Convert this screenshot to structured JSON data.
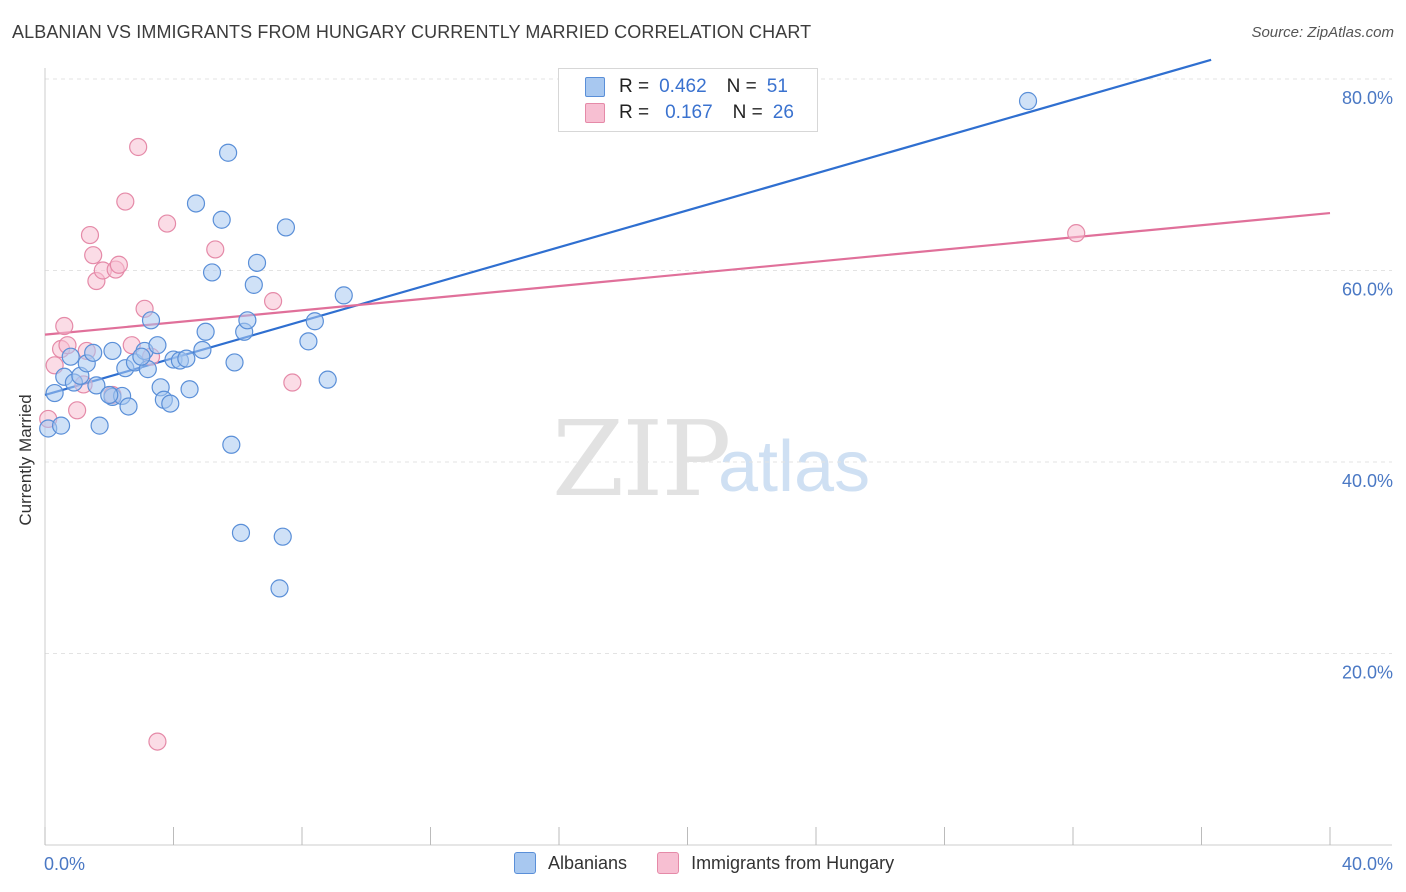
{
  "title": "ALBANIAN VS IMMIGRANTS FROM HUNGARY CURRENTLY MARRIED CORRELATION CHART",
  "source": "Source: ZipAtlas.com",
  "watermark": {
    "zip": "ZIP",
    "atlas": "atlas"
  },
  "legend_top": {
    "albanians": {
      "r_label": "R =",
      "r_value": "0.462",
      "n_label": "N =",
      "n_value": "51"
    },
    "hungary": {
      "r_label": "R =",
      "r_value": "0.167",
      "n_label": "N =",
      "n_value": "26"
    }
  },
  "bottom_legend": {
    "albanians": "Albanians",
    "hungary": "Immigrants from Hungary"
  },
  "colors": {
    "albanian_fill": "#a8c8f0",
    "albanian_stroke": "#5a8fd8",
    "albanian_line": "#2f6fd0",
    "hungary_fill": "#f7bfd2",
    "hungary_stroke": "#e58aa8",
    "hungary_line": "#e0709a",
    "tick": "#4a78c4",
    "grid": "#e3e3e3"
  },
  "chart_data": {
    "type": "scatter",
    "title": "ALBANIAN VS IMMIGRANTS FROM HUNGARY CURRENTLY MARRIED CORRELATION CHART",
    "xlabel": "",
    "ylabel": "Currently Married",
    "xlim": [
      0,
      40
    ],
    "ylim": [
      0,
      80
    ],
    "x_tick_labels": [
      "0.0%",
      "40.0%"
    ],
    "y_ticks": [
      20,
      40,
      60,
      80
    ],
    "y_tick_labels": [
      "20.0%",
      "40.0%",
      "60.0%",
      "80.0%"
    ],
    "series": [
      {
        "name": "Albanians",
        "trend": {
          "x": [
            0,
            36.3
          ],
          "y": [
            47.0,
            82.0
          ]
        },
        "points": [
          [
            0.1,
            43.5
          ],
          [
            0.3,
            47.2
          ],
          [
            0.5,
            43.8
          ],
          [
            0.6,
            48.9
          ],
          [
            0.8,
            51.0
          ],
          [
            0.9,
            48.3
          ],
          [
            1.1,
            49.0
          ],
          [
            1.3,
            50.3
          ],
          [
            1.5,
            51.4
          ],
          [
            1.6,
            48.0
          ],
          [
            1.7,
            43.8
          ],
          [
            2.1,
            46.8
          ],
          [
            2.1,
            51.6
          ],
          [
            2.4,
            46.9
          ],
          [
            2.5,
            49.8
          ],
          [
            2.6,
            45.8
          ],
          [
            2.8,
            50.4
          ],
          [
            3.1,
            51.6
          ],
          [
            3.2,
            49.7
          ],
          [
            3.3,
            54.8
          ],
          [
            3.5,
            52.2
          ],
          [
            3.6,
            47.8
          ],
          [
            3.7,
            46.5
          ],
          [
            3.9,
            46.1
          ],
          [
            4.0,
            50.7
          ],
          [
            4.2,
            50.6
          ],
          [
            4.4,
            50.8
          ],
          [
            4.5,
            47.6
          ],
          [
            4.7,
            67.0
          ],
          [
            4.9,
            51.7
          ],
          [
            5.0,
            53.6
          ],
          [
            5.2,
            59.8
          ],
          [
            5.5,
            65.3
          ],
          [
            5.7,
            72.3
          ],
          [
            5.8,
            41.8
          ],
          [
            5.9,
            50.4
          ],
          [
            6.1,
            32.6
          ],
          [
            6.2,
            53.6
          ],
          [
            6.3,
            54.8
          ],
          [
            6.5,
            58.5
          ],
          [
            6.6,
            60.8
          ],
          [
            7.3,
            26.8
          ],
          [
            7.4,
            32.2
          ],
          [
            7.5,
            64.5
          ],
          [
            8.2,
            52.6
          ],
          [
            8.4,
            54.7
          ],
          [
            8.8,
            48.6
          ],
          [
            9.3,
            57.4
          ],
          [
            30.6,
            77.7
          ],
          [
            2.0,
            47.0
          ],
          [
            3.0,
            51.0
          ]
        ]
      },
      {
        "name": "Immigrants from Hungary",
        "trend": {
          "x": [
            0,
            40
          ],
          "y": [
            53.3,
            66.0
          ]
        },
        "points": [
          [
            0.1,
            44.5
          ],
          [
            0.3,
            50.1
          ],
          [
            0.5,
            51.8
          ],
          [
            0.6,
            54.2
          ],
          [
            0.7,
            52.2
          ],
          [
            1.0,
            45.4
          ],
          [
            1.3,
            51.6
          ],
          [
            1.4,
            63.7
          ],
          [
            1.5,
            61.6
          ],
          [
            1.6,
            58.9
          ],
          [
            1.8,
            60.0
          ],
          [
            2.1,
            47.0
          ],
          [
            2.2,
            60.1
          ],
          [
            2.3,
            60.6
          ],
          [
            2.5,
            67.2
          ],
          [
            2.7,
            52.2
          ],
          [
            2.9,
            72.9
          ],
          [
            3.1,
            56.0
          ],
          [
            3.3,
            51.0
          ],
          [
            3.5,
            10.8
          ],
          [
            3.8,
            64.9
          ],
          [
            5.3,
            62.2
          ],
          [
            7.1,
            56.8
          ],
          [
            7.7,
            48.3
          ],
          [
            32.1,
            63.9
          ],
          [
            1.2,
            48.1
          ]
        ]
      }
    ]
  }
}
